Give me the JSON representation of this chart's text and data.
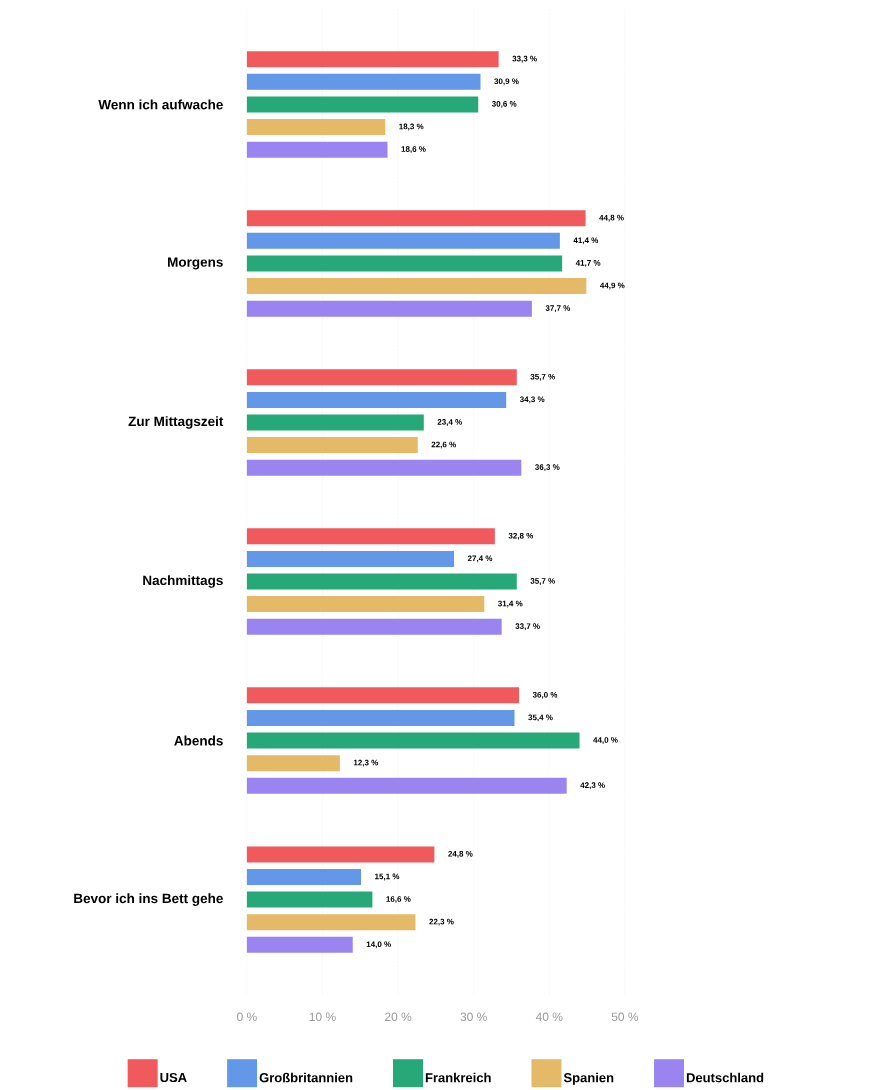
{
  "chart_data": {
    "type": "bar",
    "orientation": "horizontal",
    "categories": [
      "Wenn ich aufwache",
      "Morgens",
      "Zur Mittagszeit",
      "Nachmittags",
      "Abends",
      "Bevor ich ins Bett gehe"
    ],
    "series": [
      {
        "name": "USA",
        "color": "#f05a5d",
        "values": [
          33.3,
          44.8,
          35.7,
          32.8,
          36.0,
          24.8
        ],
        "value_labels": [
          "33,3 %",
          "44,8 %",
          "35,7 %",
          "32,8 %",
          "36,0 %",
          "24,8 %"
        ]
      },
      {
        "name": "Großbritannien",
        "color": "#6397e7",
        "values": [
          30.9,
          41.4,
          34.3,
          27.4,
          35.4,
          15.1
        ],
        "value_labels": [
          "30,9 %",
          "41,4 %",
          "34,3 %",
          "27,4 %",
          "35,4 %",
          "15,1 %"
        ]
      },
      {
        "name": "Frankreich",
        "color": "#27a878",
        "values": [
          30.6,
          41.7,
          23.4,
          35.7,
          44.0,
          16.6
        ],
        "value_labels": [
          "30,6 %",
          "41,7 %",
          "23,4 %",
          "35,7 %",
          "44,0 %",
          "16,6 %"
        ]
      },
      {
        "name": "Spanien",
        "color": "#e4b967",
        "values": [
          18.3,
          44.9,
          22.6,
          31.4,
          12.3,
          22.3
        ],
        "value_labels": [
          "18,3 %",
          "44,9 %",
          "22,6 %",
          "31,4 %",
          "12,3 %",
          "22,3 %"
        ]
      },
      {
        "name": "Deutschland",
        "color": "#9a85f0",
        "values": [
          18.6,
          37.7,
          36.3,
          33.7,
          42.3,
          14.0
        ],
        "value_labels": [
          "18,6 %",
          "37,7 %",
          "36,3 %",
          "33,7 %",
          "42,3 %",
          "14,0 %"
        ]
      }
    ],
    "xlim": [
      0,
      50
    ],
    "xticks": [
      {
        "value": 0,
        "label": "0 %"
      },
      {
        "value": 10,
        "label": "10 %"
      },
      {
        "value": 20,
        "label": "20 %"
      },
      {
        "value": 30,
        "label": "30 %"
      },
      {
        "value": 40,
        "label": "40 %"
      },
      {
        "value": 50,
        "label": "50 %"
      }
    ],
    "grid": "x",
    "legend": "bottom"
  }
}
